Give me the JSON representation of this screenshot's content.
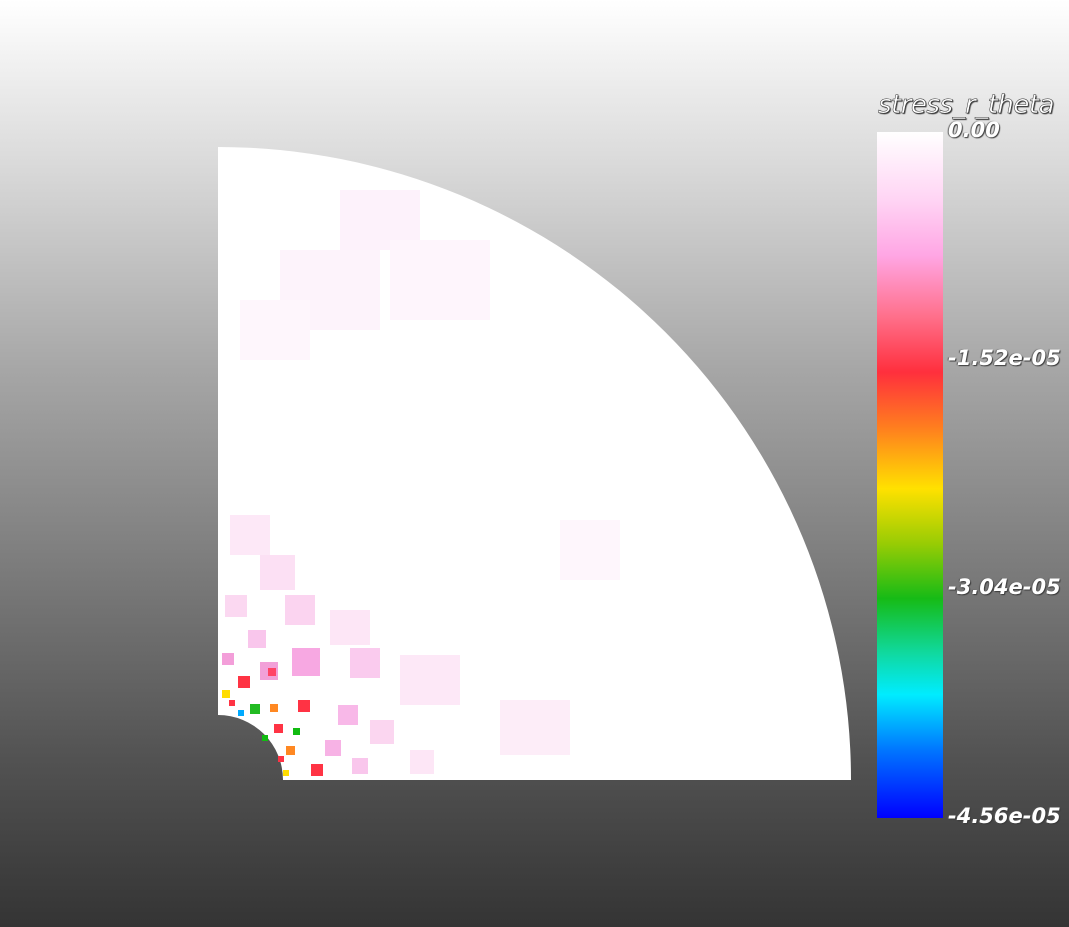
{
  "scalar_bar": {
    "title": "stress_r_theta",
    "labels": [
      "0.00",
      "-1.52e-05",
      "-3.04e-05",
      "-4.56e-05"
    ],
    "min": -4.56e-05,
    "max": 0.0
  },
  "colors": {
    "background_top": "#ffffff",
    "background_bottom": "#343434",
    "colormap": [
      "#ffffff",
      "#ffaaee",
      "#ff7799",
      "#ff3344",
      "#ff8822",
      "#ffdd00",
      "#88cc00",
      "#11bb11",
      "#11ddaa",
      "#00eeff",
      "#0077ff",
      "#0000ff"
    ]
  },
  "mesh": {
    "shape": "quarter annulus (plate with circular hole)"
  }
}
